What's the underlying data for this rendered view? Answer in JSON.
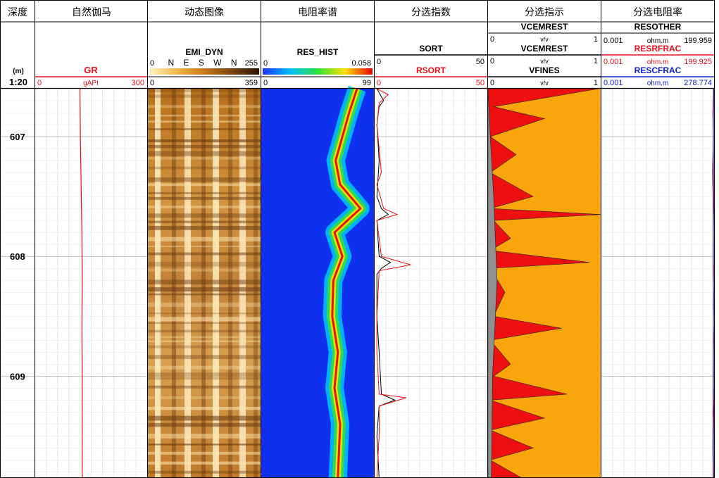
{
  "tracks": [
    {
      "id": "depth",
      "title": "深度",
      "depth_unit": "(m)",
      "scale": "1:20"
    },
    {
      "id": "gr",
      "title": "自然伽马"
    },
    {
      "id": "dyn",
      "title": "动态图像"
    },
    {
      "id": "hist",
      "title": "电阻率谱"
    },
    {
      "id": "sort",
      "title": "分选指数"
    },
    {
      "id": "ind",
      "title": "分选指示"
    },
    {
      "id": "res",
      "title": "分选电阻率"
    }
  ],
  "headers": {
    "gr": {
      "name": "GR",
      "min": "0",
      "unit": "gAPI",
      "max": "300",
      "color": "#e8101c"
    },
    "dyn": {
      "name": "EMI_DYN",
      "scale_min": "0",
      "scale_max": "255",
      "azimuths": "N E S W N",
      "min": "0",
      "max": "359"
    },
    "hist": {
      "name": "RES_HIST",
      "scale_min": "0",
      "scale_max": "0.058",
      "min": "0",
      "max": "99"
    },
    "sort": [
      {
        "name": "SORT",
        "min": "0",
        "max": "50",
        "color": "#000000"
      },
      {
        "name": "RSORT",
        "min": "0",
        "max": "50",
        "color": "#e8101c"
      }
    ],
    "ind": [
      {
        "name": "VCEMREST",
        "min": "0",
        "unit": "v/v",
        "max": "1",
        "color": "#000000"
      },
      {
        "name": "VCEMREST",
        "min": "0",
        "unit": "v/v",
        "max": "1",
        "color": "#000000"
      },
      {
        "name": "VFINES",
        "min": "0",
        "unit": "v/v",
        "max": "1",
        "color": "#000000"
      }
    ],
    "res": [
      {
        "name": "RESOTHER",
        "min": "0.001",
        "unit": "ohm.m",
        "max": "199.959",
        "color": "#000000"
      },
      {
        "name": "RESRFRAC",
        "min": "0.001",
        "unit": "ohm.m",
        "max": "199.925",
        "color": "#e8101c"
      },
      {
        "name": "RESCFRAC",
        "min": "0.001",
        "unit": "ohm.m",
        "max": "278.774",
        "color": "#1020c0"
      }
    ]
  },
  "chart_data": {
    "type": "line",
    "depth_range": [
      606.6,
      609.85
    ],
    "depth_ticks": [
      607,
      608,
      609
    ],
    "x_ranges": {
      "GR": [
        0,
        300
      ],
      "SORT": [
        0,
        50
      ],
      "RSORT": [
        0,
        50
      ],
      "VCEMREST": [
        0,
        1
      ],
      "VFINES": [
        0,
        1
      ],
      "RESOTHER": [
        0.001,
        199.959
      ],
      "RESRFRAC": [
        0.001,
        199.925
      ],
      "RESCFRAC": [
        0.001,
        278.774
      ]
    },
    "GR": [
      [
        606.6,
        120
      ],
      [
        607.0,
        121
      ],
      [
        607.4,
        123
      ],
      [
        607.8,
        125
      ],
      [
        608.2,
        126
      ],
      [
        608.6,
        125
      ],
      [
        609.0,
        126
      ],
      [
        609.4,
        126
      ],
      [
        609.85,
        126
      ]
    ],
    "SORT": [
      [
        606.6,
        1
      ],
      [
        606.7,
        4
      ],
      [
        606.75,
        2
      ],
      [
        606.9,
        1
      ],
      [
        607.2,
        2
      ],
      [
        607.5,
        1
      ],
      [
        607.6,
        3
      ],
      [
        607.65,
        6
      ],
      [
        607.7,
        1
      ],
      [
        608.0,
        2
      ],
      [
        608.05,
        7
      ],
      [
        608.1,
        3
      ],
      [
        608.15,
        1
      ],
      [
        608.5,
        1
      ],
      [
        608.8,
        2
      ],
      [
        609.15,
        3
      ],
      [
        609.2,
        9
      ],
      [
        609.25,
        2
      ],
      [
        609.5,
        1
      ],
      [
        609.85,
        2
      ]
    ],
    "RSORT": [
      [
        606.6,
        1
      ],
      [
        606.65,
        6
      ],
      [
        606.72,
        2
      ],
      [
        606.9,
        1
      ],
      [
        607.3,
        3
      ],
      [
        607.4,
        1
      ],
      [
        607.6,
        4
      ],
      [
        607.65,
        10
      ],
      [
        607.7,
        1
      ],
      [
        608.0,
        3
      ],
      [
        608.07,
        16
      ],
      [
        608.12,
        2
      ],
      [
        608.5,
        1
      ],
      [
        608.8,
        1
      ],
      [
        609.15,
        2
      ],
      [
        609.18,
        14
      ],
      [
        609.25,
        2
      ],
      [
        609.5,
        2
      ],
      [
        609.85,
        1
      ]
    ],
    "VCEMREST": [
      [
        606.6,
        0.98
      ],
      [
        606.75,
        0.05
      ],
      [
        606.85,
        0.5
      ],
      [
        607.0,
        0.02
      ],
      [
        607.15,
        0.25
      ],
      [
        607.3,
        0.02
      ],
      [
        607.5,
        0.4
      ],
      [
        607.6,
        0.02
      ],
      [
        607.65,
        1.0
      ],
      [
        607.7,
        0.05
      ],
      [
        607.85,
        0.2
      ],
      [
        607.95,
        0.02
      ],
      [
        608.05,
        0.9
      ],
      [
        608.1,
        0.02
      ],
      [
        608.3,
        0.15
      ],
      [
        608.5,
        0.05
      ],
      [
        608.6,
        0.65
      ],
      [
        608.7,
        0.02
      ],
      [
        608.9,
        0.2
      ],
      [
        609.0,
        0.05
      ],
      [
        609.15,
        0.7
      ],
      [
        609.2,
        0.02
      ],
      [
        609.35,
        0.5
      ],
      [
        609.45,
        0.02
      ],
      [
        609.6,
        0.4
      ],
      [
        609.7,
        0.02
      ],
      [
        609.85,
        0.3
      ]
    ],
    "VFINES": [
      [
        606.6,
        0.0
      ],
      [
        607.0,
        0.02
      ],
      [
        607.5,
        0.05
      ],
      [
        608.2,
        0.08
      ],
      [
        608.6,
        0.06
      ],
      [
        609.0,
        0.04
      ],
      [
        609.85,
        0.03
      ]
    ],
    "RESOTHER": [
      [
        606.6,
        190
      ],
      [
        606.8,
        175
      ],
      [
        607.0,
        185
      ],
      [
        607.3,
        170
      ],
      [
        607.5,
        180
      ],
      [
        607.8,
        182
      ],
      [
        608.0,
        178
      ],
      [
        608.3,
        188
      ],
      [
        608.6,
        184
      ],
      [
        609.0,
        180
      ],
      [
        609.3,
        178
      ],
      [
        609.6,
        176
      ],
      [
        609.85,
        181
      ]
    ],
    "RESRFRAC": [
      [
        606.6,
        190
      ],
      [
        606.8,
        178
      ],
      [
        607.0,
        188
      ],
      [
        607.3,
        174
      ],
      [
        607.6,
        182
      ],
      [
        607.9,
        186
      ],
      [
        608.1,
        178
      ],
      [
        608.4,
        190
      ],
      [
        608.7,
        182
      ],
      [
        609.0,
        188
      ],
      [
        609.3,
        176
      ],
      [
        609.6,
        185
      ],
      [
        609.85,
        178
      ]
    ],
    "RESCFRAC": [
      [
        606.6,
        270
      ],
      [
        606.8,
        260
      ],
      [
        607.0,
        255
      ],
      [
        607.3,
        262
      ],
      [
        607.6,
        266
      ],
      [
        607.9,
        250
      ],
      [
        608.1,
        262
      ],
      [
        608.4,
        256
      ],
      [
        608.7,
        264
      ],
      [
        609.0,
        255
      ],
      [
        609.3,
        268
      ],
      [
        609.6,
        258
      ],
      [
        609.85,
        265
      ]
    ],
    "RES_HIST_peak": [
      [
        606.6,
        0.85
      ],
      [
        606.8,
        0.78
      ],
      [
        607.0,
        0.72
      ],
      [
        607.2,
        0.66
      ],
      [
        607.4,
        0.7
      ],
      [
        607.6,
        0.88
      ],
      [
        607.8,
        0.65
      ],
      [
        608.0,
        0.72
      ],
      [
        608.2,
        0.64
      ],
      [
        608.5,
        0.63
      ],
      [
        608.8,
        0.68
      ],
      [
        609.1,
        0.65
      ],
      [
        609.4,
        0.7
      ],
      [
        609.85,
        0.68
      ]
    ]
  }
}
